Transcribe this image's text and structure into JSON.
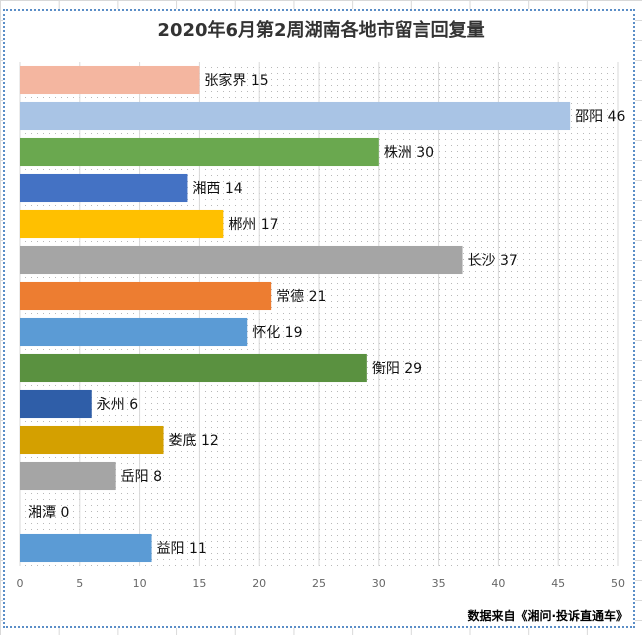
{
  "chart_data": {
    "type": "bar",
    "orientation": "horizontal",
    "title": "2020年6月第2周湖南各地市留言回复量",
    "categories": [
      "张家界",
      "邵阳",
      "株洲",
      "湘西",
      "郴州",
      "长沙",
      "常德",
      "怀化",
      "衡阳",
      "永州",
      "娄底",
      "岳阳",
      "湘潭",
      "益阳"
    ],
    "values": [
      15,
      46,
      30,
      14,
      17,
      37,
      21,
      19,
      29,
      6,
      12,
      8,
      0,
      11
    ],
    "colors": [
      "#f4b6a0",
      "#a9c4e5",
      "#6aa84f",
      "#4472c4",
      "#ffc000",
      "#a5a5a5",
      "#ed7d31",
      "#5b9bd5",
      "#5a9140",
      "#2f5ea8",
      "#d4a000",
      "#a5a5a5",
      "#cccccc",
      "#5b9bd5"
    ],
    "xlim": [
      0,
      50
    ],
    "xticks": [
      0,
      5,
      10,
      15,
      20,
      25,
      30,
      35,
      40,
      45,
      50
    ],
    "grid": true,
    "data_labels": "category and value"
  },
  "footer": {
    "source": "数据来自《湘问·投诉直通车》"
  }
}
